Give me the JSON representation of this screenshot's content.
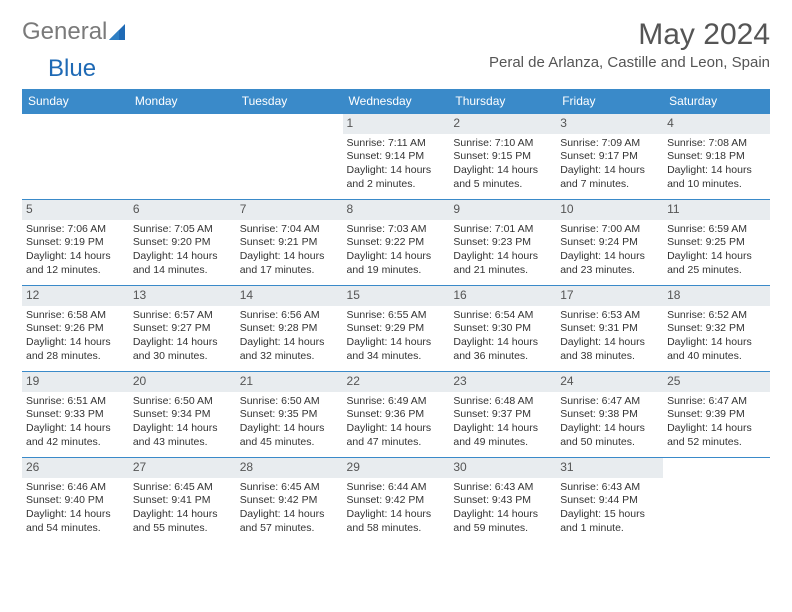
{
  "brand": {
    "part1": "General",
    "part2": "Blue"
  },
  "title": "May 2024",
  "location": "Peral de Arlanza, Castille and Leon, Spain",
  "colors": {
    "header_bg": "#3a8ac9",
    "header_text": "#ffffff",
    "daynum_bg": "#e8ecef",
    "border": "#3a8ac9",
    "brand_gray": "#7a7a7a",
    "brand_blue": "#1f6ab5"
  },
  "weekdays": [
    "Sunday",
    "Monday",
    "Tuesday",
    "Wednesday",
    "Thursday",
    "Friday",
    "Saturday"
  ],
  "weeks": [
    [
      {
        "empty": true
      },
      {
        "empty": true
      },
      {
        "empty": true
      },
      {
        "day": "1",
        "sunrise": "Sunrise: 7:11 AM",
        "sunset": "Sunset: 9:14 PM",
        "daylight1": "Daylight: 14 hours",
        "daylight2": "and 2 minutes."
      },
      {
        "day": "2",
        "sunrise": "Sunrise: 7:10 AM",
        "sunset": "Sunset: 9:15 PM",
        "daylight1": "Daylight: 14 hours",
        "daylight2": "and 5 minutes."
      },
      {
        "day": "3",
        "sunrise": "Sunrise: 7:09 AM",
        "sunset": "Sunset: 9:17 PM",
        "daylight1": "Daylight: 14 hours",
        "daylight2": "and 7 minutes."
      },
      {
        "day": "4",
        "sunrise": "Sunrise: 7:08 AM",
        "sunset": "Sunset: 9:18 PM",
        "daylight1": "Daylight: 14 hours",
        "daylight2": "and 10 minutes."
      }
    ],
    [
      {
        "day": "5",
        "sunrise": "Sunrise: 7:06 AM",
        "sunset": "Sunset: 9:19 PM",
        "daylight1": "Daylight: 14 hours",
        "daylight2": "and 12 minutes."
      },
      {
        "day": "6",
        "sunrise": "Sunrise: 7:05 AM",
        "sunset": "Sunset: 9:20 PM",
        "daylight1": "Daylight: 14 hours",
        "daylight2": "and 14 minutes."
      },
      {
        "day": "7",
        "sunrise": "Sunrise: 7:04 AM",
        "sunset": "Sunset: 9:21 PM",
        "daylight1": "Daylight: 14 hours",
        "daylight2": "and 17 minutes."
      },
      {
        "day": "8",
        "sunrise": "Sunrise: 7:03 AM",
        "sunset": "Sunset: 9:22 PM",
        "daylight1": "Daylight: 14 hours",
        "daylight2": "and 19 minutes."
      },
      {
        "day": "9",
        "sunrise": "Sunrise: 7:01 AM",
        "sunset": "Sunset: 9:23 PM",
        "daylight1": "Daylight: 14 hours",
        "daylight2": "and 21 minutes."
      },
      {
        "day": "10",
        "sunrise": "Sunrise: 7:00 AM",
        "sunset": "Sunset: 9:24 PM",
        "daylight1": "Daylight: 14 hours",
        "daylight2": "and 23 minutes."
      },
      {
        "day": "11",
        "sunrise": "Sunrise: 6:59 AM",
        "sunset": "Sunset: 9:25 PM",
        "daylight1": "Daylight: 14 hours",
        "daylight2": "and 25 minutes."
      }
    ],
    [
      {
        "day": "12",
        "sunrise": "Sunrise: 6:58 AM",
        "sunset": "Sunset: 9:26 PM",
        "daylight1": "Daylight: 14 hours",
        "daylight2": "and 28 minutes."
      },
      {
        "day": "13",
        "sunrise": "Sunrise: 6:57 AM",
        "sunset": "Sunset: 9:27 PM",
        "daylight1": "Daylight: 14 hours",
        "daylight2": "and 30 minutes."
      },
      {
        "day": "14",
        "sunrise": "Sunrise: 6:56 AM",
        "sunset": "Sunset: 9:28 PM",
        "daylight1": "Daylight: 14 hours",
        "daylight2": "and 32 minutes."
      },
      {
        "day": "15",
        "sunrise": "Sunrise: 6:55 AM",
        "sunset": "Sunset: 9:29 PM",
        "daylight1": "Daylight: 14 hours",
        "daylight2": "and 34 minutes."
      },
      {
        "day": "16",
        "sunrise": "Sunrise: 6:54 AM",
        "sunset": "Sunset: 9:30 PM",
        "daylight1": "Daylight: 14 hours",
        "daylight2": "and 36 minutes."
      },
      {
        "day": "17",
        "sunrise": "Sunrise: 6:53 AM",
        "sunset": "Sunset: 9:31 PM",
        "daylight1": "Daylight: 14 hours",
        "daylight2": "and 38 minutes."
      },
      {
        "day": "18",
        "sunrise": "Sunrise: 6:52 AM",
        "sunset": "Sunset: 9:32 PM",
        "daylight1": "Daylight: 14 hours",
        "daylight2": "and 40 minutes."
      }
    ],
    [
      {
        "day": "19",
        "sunrise": "Sunrise: 6:51 AM",
        "sunset": "Sunset: 9:33 PM",
        "daylight1": "Daylight: 14 hours",
        "daylight2": "and 42 minutes."
      },
      {
        "day": "20",
        "sunrise": "Sunrise: 6:50 AM",
        "sunset": "Sunset: 9:34 PM",
        "daylight1": "Daylight: 14 hours",
        "daylight2": "and 43 minutes."
      },
      {
        "day": "21",
        "sunrise": "Sunrise: 6:50 AM",
        "sunset": "Sunset: 9:35 PM",
        "daylight1": "Daylight: 14 hours",
        "daylight2": "and 45 minutes."
      },
      {
        "day": "22",
        "sunrise": "Sunrise: 6:49 AM",
        "sunset": "Sunset: 9:36 PM",
        "daylight1": "Daylight: 14 hours",
        "daylight2": "and 47 minutes."
      },
      {
        "day": "23",
        "sunrise": "Sunrise: 6:48 AM",
        "sunset": "Sunset: 9:37 PM",
        "daylight1": "Daylight: 14 hours",
        "daylight2": "and 49 minutes."
      },
      {
        "day": "24",
        "sunrise": "Sunrise: 6:47 AM",
        "sunset": "Sunset: 9:38 PM",
        "daylight1": "Daylight: 14 hours",
        "daylight2": "and 50 minutes."
      },
      {
        "day": "25",
        "sunrise": "Sunrise: 6:47 AM",
        "sunset": "Sunset: 9:39 PM",
        "daylight1": "Daylight: 14 hours",
        "daylight2": "and 52 minutes."
      }
    ],
    [
      {
        "day": "26",
        "sunrise": "Sunrise: 6:46 AM",
        "sunset": "Sunset: 9:40 PM",
        "daylight1": "Daylight: 14 hours",
        "daylight2": "and 54 minutes."
      },
      {
        "day": "27",
        "sunrise": "Sunrise: 6:45 AM",
        "sunset": "Sunset: 9:41 PM",
        "daylight1": "Daylight: 14 hours",
        "daylight2": "and 55 minutes."
      },
      {
        "day": "28",
        "sunrise": "Sunrise: 6:45 AM",
        "sunset": "Sunset: 9:42 PM",
        "daylight1": "Daylight: 14 hours",
        "daylight2": "and 57 minutes."
      },
      {
        "day": "29",
        "sunrise": "Sunrise: 6:44 AM",
        "sunset": "Sunset: 9:42 PM",
        "daylight1": "Daylight: 14 hours",
        "daylight2": "and 58 minutes."
      },
      {
        "day": "30",
        "sunrise": "Sunrise: 6:43 AM",
        "sunset": "Sunset: 9:43 PM",
        "daylight1": "Daylight: 14 hours",
        "daylight2": "and 59 minutes."
      },
      {
        "day": "31",
        "sunrise": "Sunrise: 6:43 AM",
        "sunset": "Sunset: 9:44 PM",
        "daylight1": "Daylight: 15 hours",
        "daylight2": "and 1 minute."
      },
      {
        "empty": true
      }
    ]
  ]
}
